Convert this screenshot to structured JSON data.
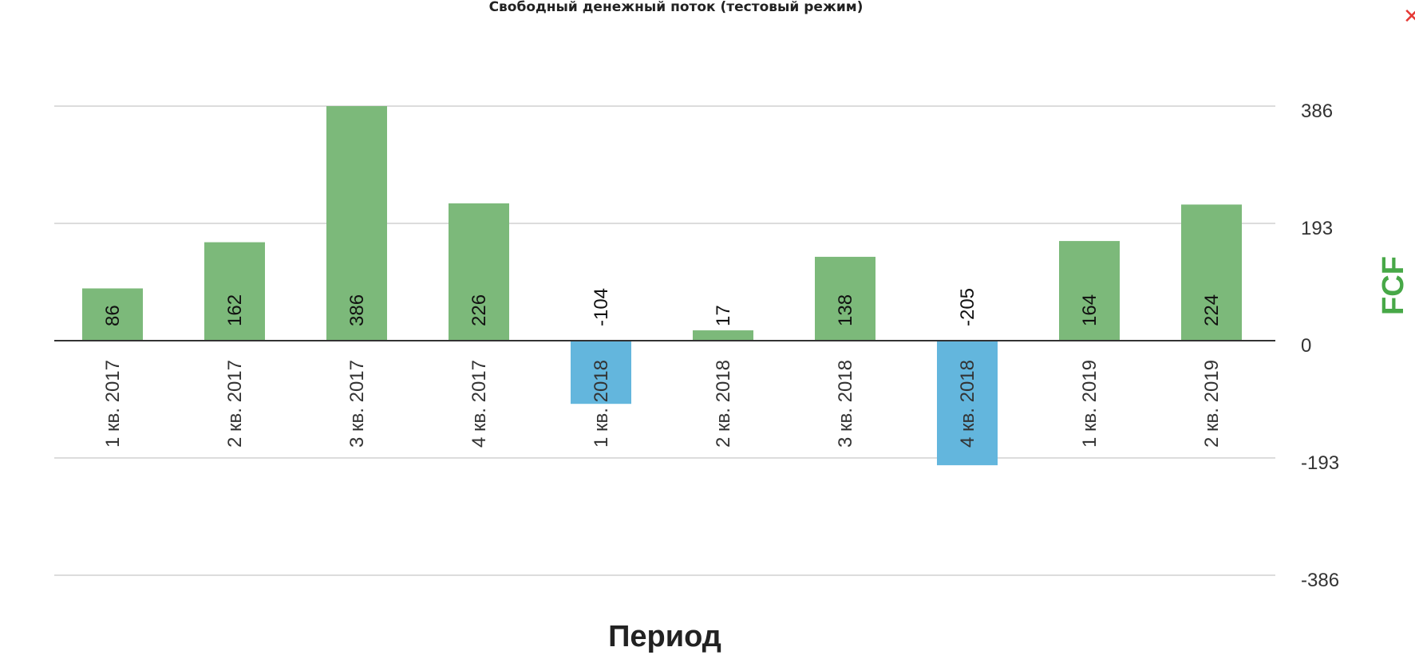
{
  "title": "Свободный денежный поток (тестовый режим)",
  "close_glyph": "✕",
  "colors": {
    "positive": "#7cb97a",
    "negative": "#63b6dd",
    "axis_label": "#47a847",
    "grid": "#d0d0d0",
    "zero_line": "#333333",
    "close": "#e53935"
  },
  "chart_data": {
    "type": "bar",
    "title": "Свободный денежный поток (тестовый режим)",
    "xlabel": "Период",
    "ylabel": "FCF",
    "categories": [
      "1 кв. 2017",
      "2 кв. 2017",
      "3 кв. 2017",
      "4 кв. 2017",
      "1 кв. 2018",
      "2 кв. 2018",
      "3 кв. 2018",
      "4 кв. 2018",
      "1 кв. 2019",
      "2 кв. 2019"
    ],
    "values": [
      86,
      162,
      386,
      226,
      -104,
      17,
      138,
      -205,
      164,
      224
    ],
    "yticks": [
      "386",
      "193",
      "0",
      "-193",
      "-386"
    ],
    "ylim": [
      -386,
      386
    ],
    "grid": true,
    "legend": "none"
  }
}
